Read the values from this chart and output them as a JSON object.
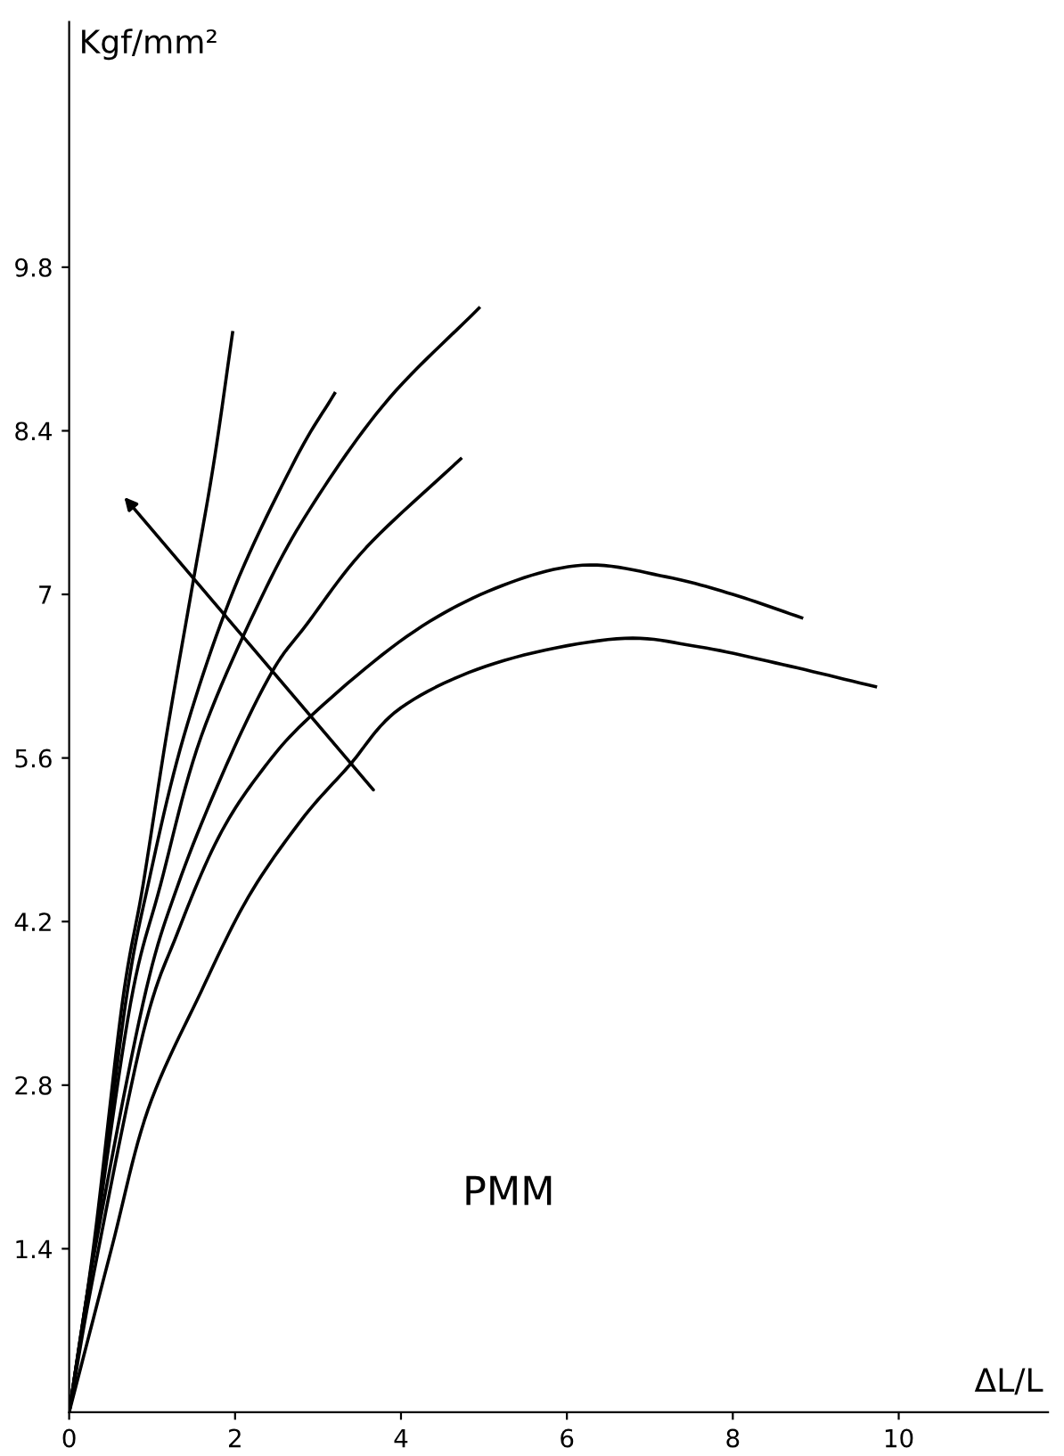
{
  "chart_data": {
    "type": "line",
    "xlabel": "ΔL/L",
    "ylabel": "Kgf/mm²",
    "xlim": [
      0,
      11.8
    ],
    "ylim": [
      0,
      11.9
    ],
    "xticks": [
      0,
      2,
      4,
      6,
      8,
      10
    ],
    "yticks": [
      1.4,
      2.8,
      4.2,
      5.6,
      7,
      8.4,
      9.8
    ],
    "grid": false,
    "legend": false,
    "marker": "none",
    "line_style": "solid",
    "series": [
      {
        "color": "#000000",
        "x": [
          0,
          0.3,
          0.64,
          0.89,
          1.17,
          1.48,
          1.74,
          1.97
        ],
        "values": [
          0,
          1.45,
          3.5,
          4.51,
          5.78,
          7.05,
          8.11,
          9.24
        ]
      },
      {
        "color": "#000000",
        "x": [
          0,
          0.3,
          0.68,
          0.95,
          1.38,
          1.99,
          2.73,
          3.2
        ],
        "values": [
          0,
          1.4,
          3.5,
          4.51,
          5.78,
          7.05,
          8.16,
          8.72
        ]
      },
      {
        "color": "#000000",
        "x": [
          0,
          0.3,
          0.74,
          1.1,
          1.59,
          2.37,
          3.01,
          3.86,
          4.94
        ],
        "values": [
          0,
          1.4,
          3.5,
          4.51,
          5.78,
          7.05,
          7.85,
          8.68,
          9.45
        ]
      },
      {
        "color": "#000000",
        "x": [
          0,
          0.3,
          0.89,
          1.31,
          1.89,
          2.44,
          2.86,
          3.58,
          4.72
        ],
        "values": [
          0,
          1.35,
          3.5,
          4.51,
          5.53,
          6.33,
          6.74,
          7.4,
          8.16
        ]
      },
      {
        "color": "#000000",
        "x": [
          0,
          0.3,
          0.89,
          1.31,
          1.8,
          2.31,
          2.9,
          4.07,
          5.13,
          6.19,
          7.2,
          8.0,
          8.83
        ],
        "values": [
          0,
          1.2,
          3.24,
          4.11,
          4.92,
          5.48,
          5.95,
          6.64,
          7.05,
          7.25,
          7.15,
          7.0,
          6.8
        ]
      },
      {
        "color": "#000000",
        "x": [
          0,
          0.51,
          0.95,
          1.59,
          2.16,
          2.8,
          3.37,
          4.0,
          5.13,
          6.6,
          7.6,
          8.6,
          9.72
        ],
        "values": [
          0,
          1.4,
          2.59,
          3.6,
          4.41,
          5.07,
          5.53,
          6.03,
          6.41,
          6.62,
          6.55,
          6.4,
          6.21
        ]
      }
    ],
    "annotations": [
      "PMM"
    ]
  }
}
